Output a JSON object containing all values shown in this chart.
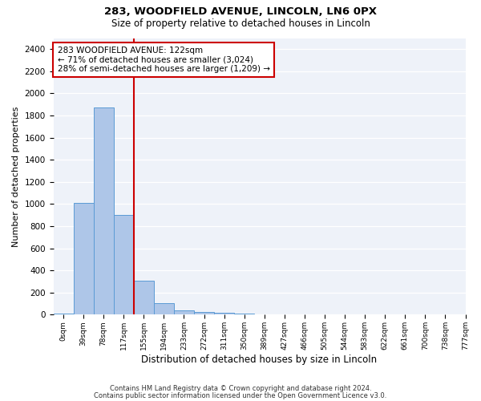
{
  "title1": "283, WOODFIELD AVENUE, LINCOLN, LN6 0PX",
  "title2": "Size of property relative to detached houses in Lincoln",
  "xlabel": "Distribution of detached houses by size in Lincoln",
  "ylabel": "Number of detached properties",
  "bar_values": [
    10,
    1010,
    1870,
    900,
    310,
    105,
    40,
    25,
    20,
    10,
    5,
    3,
    2,
    1,
    1,
    1,
    1,
    1,
    1,
    1
  ],
  "bar_labels": [
    "0sqm",
    "39sqm",
    "78sqm",
    "117sqm",
    "155sqm",
    "194sqm",
    "233sqm",
    "272sqm",
    "311sqm",
    "350sqm",
    "389sqm",
    "427sqm",
    "466sqm",
    "505sqm",
    "544sqm",
    "583sqm",
    "622sqm",
    "661sqm",
    "700sqm",
    "738sqm"
  ],
  "bar_color": "#aec6e8",
  "bar_edge_color": "#5b9bd5",
  "annotation_text": "283 WOODFIELD AVENUE: 122sqm\n← 71% of detached houses are smaller (3,024)\n28% of semi-detached houses are larger (1,209) →",
  "annotation_box_color": "#ffffff",
  "annotation_box_edge": "#cc0000",
  "ylim": [
    0,
    2500
  ],
  "yticks": [
    0,
    200,
    400,
    600,
    800,
    1000,
    1200,
    1400,
    1600,
    1800,
    2000,
    2200,
    2400
  ],
  "footer1": "Contains HM Land Registry data © Crown copyright and database right 2024.",
  "footer2": "Contains public sector information licensed under the Open Government Licence v3.0.",
  "bg_color": "#eef2f9",
  "extra_label": "777sqm"
}
